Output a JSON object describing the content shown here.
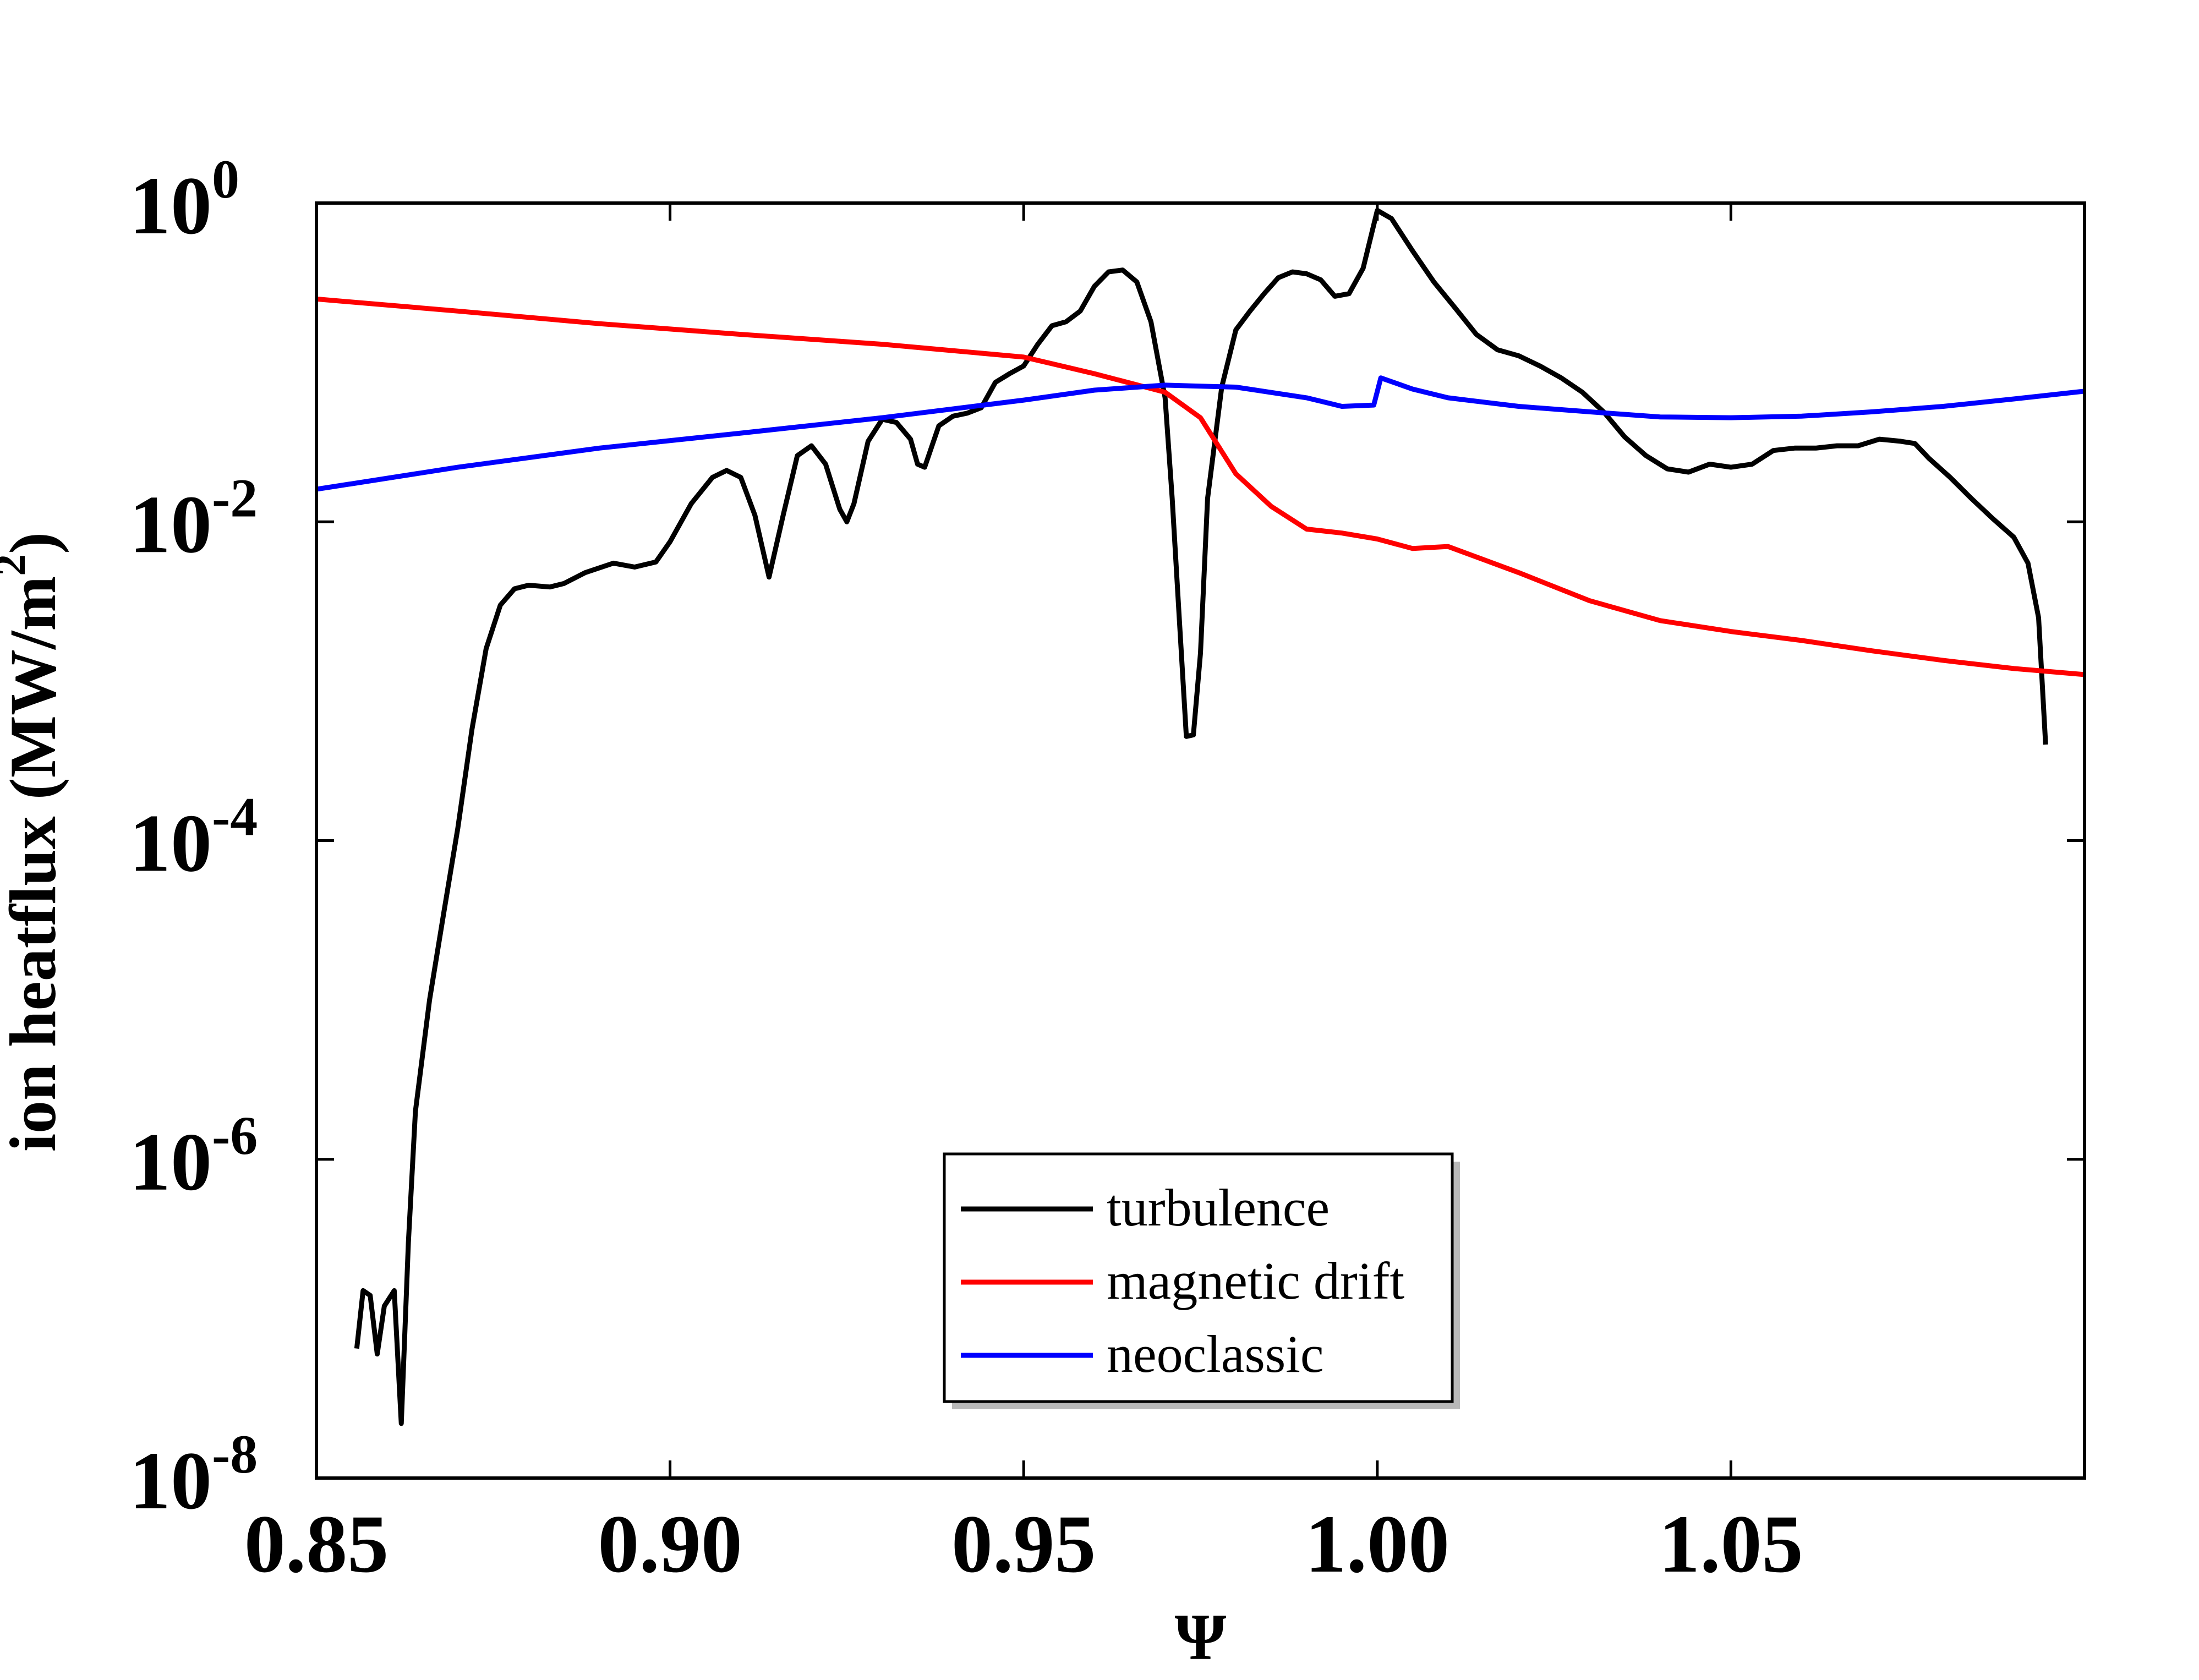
{
  "chart_data": {
    "type": "line",
    "xlabel": "Ψ",
    "ylabel": "ion heatflux (MW/m",
    "ylabel_sup": "2",
    "ylabel_close": ")",
    "xlim": [
      0.85,
      1.1
    ],
    "ylim": [
      1e-08,
      1
    ],
    "yscale": "log",
    "grid": false,
    "legend_position": "bottom-center",
    "x_ticks": [
      {
        "value": 0.85,
        "label": "0.85"
      },
      {
        "value": 0.9,
        "label": "0.90"
      },
      {
        "value": 0.95,
        "label": "0.95"
      },
      {
        "value": 1.0,
        "label": "1.00"
      },
      {
        "value": 1.05,
        "label": "1.05"
      }
    ],
    "y_ticks": [
      {
        "exp": 0,
        "base": "10",
        "sup": "0"
      },
      {
        "exp": -2,
        "base": "10",
        "sup": "-2"
      },
      {
        "exp": -4,
        "base": "10",
        "sup": "-4"
      },
      {
        "exp": -6,
        "base": "10",
        "sup": "-6"
      },
      {
        "exp": -8,
        "base": "10",
        "sup": "-8"
      }
    ],
    "series": [
      {
        "name": "turbulence",
        "color": "#000000",
        "points": [
          [
            0.8557,
            6.5e-08
          ],
          [
            0.8566,
            1.5e-07
          ],
          [
            0.8576,
            1.4e-07
          ],
          [
            0.8586,
            6e-08
          ],
          [
            0.8596,
            1.2e-07
          ],
          [
            0.861,
            1.5e-07
          ],
          [
            0.862,
            2.2e-08
          ],
          [
            0.863,
            3e-07
          ],
          [
            0.864,
            2e-06
          ],
          [
            0.866,
            1e-05
          ],
          [
            0.868,
            3.5e-05
          ],
          [
            0.87,
            0.00012
          ],
          [
            0.872,
            0.0005
          ],
          [
            0.874,
            0.0016
          ],
          [
            0.876,
            0.003
          ],
          [
            0.878,
            0.0038
          ],
          [
            0.88,
            0.004
          ],
          [
            0.883,
            0.0039
          ],
          [
            0.885,
            0.0041
          ],
          [
            0.888,
            0.0048
          ],
          [
            0.892,
            0.0055
          ],
          [
            0.895,
            0.0052
          ],
          [
            0.898,
            0.0056
          ],
          [
            0.9,
            0.0075
          ],
          [
            0.903,
            0.013
          ],
          [
            0.906,
            0.019
          ],
          [
            0.908,
            0.021
          ],
          [
            0.91,
            0.019
          ],
          [
            0.912,
            0.011
          ],
          [
            0.914,
            0.0045
          ],
          [
            0.916,
            0.011
          ],
          [
            0.918,
            0.026
          ],
          [
            0.92,
            0.03
          ],
          [
            0.922,
            0.023
          ],
          [
            0.924,
            0.012
          ],
          [
            0.925,
            0.01
          ],
          [
            0.926,
            0.013
          ],
          [
            0.928,
            0.032
          ],
          [
            0.93,
            0.044
          ],
          [
            0.932,
            0.042
          ],
          [
            0.934,
            0.033
          ],
          [
            0.935,
            0.023
          ],
          [
            0.936,
            0.022
          ],
          [
            0.938,
            0.04
          ],
          [
            0.94,
            0.046
          ],
          [
            0.942,
            0.048
          ],
          [
            0.944,
            0.052
          ],
          [
            0.946,
            0.075
          ],
          [
            0.948,
            0.085
          ],
          [
            0.95,
            0.095
          ],
          [
            0.952,
            0.13
          ],
          [
            0.954,
            0.17
          ],
          [
            0.956,
            0.18
          ],
          [
            0.958,
            0.21
          ],
          [
            0.96,
            0.3
          ],
          [
            0.962,
            0.37
          ],
          [
            0.964,
            0.38
          ],
          [
            0.966,
            0.32
          ],
          [
            0.968,
            0.18
          ],
          [
            0.97,
            0.06
          ],
          [
            0.971,
            0.014
          ],
          [
            0.972,
            0.0025
          ],
          [
            0.973,
            0.00045
          ],
          [
            0.974,
            0.00046
          ],
          [
            0.975,
            0.0015
          ],
          [
            0.976,
            0.014
          ],
          [
            0.978,
            0.07
          ],
          [
            0.98,
            0.16
          ],
          [
            0.982,
            0.21
          ],
          [
            0.984,
            0.27
          ],
          [
            0.986,
            0.34
          ],
          [
            0.988,
            0.37
          ],
          [
            0.99,
            0.36
          ],
          [
            0.992,
            0.33
          ],
          [
            0.994,
            0.26
          ],
          [
            0.996,
            0.27
          ],
          [
            0.998,
            0.39
          ],
          [
            1.0,
            0.9
          ],
          [
            1.002,
            0.8
          ],
          [
            1.005,
            0.5
          ],
          [
            1.008,
            0.32
          ],
          [
            1.011,
            0.22
          ],
          [
            1.014,
            0.15
          ],
          [
            1.017,
            0.12
          ],
          [
            1.02,
            0.11
          ],
          [
            1.023,
            0.095
          ],
          [
            1.026,
            0.08
          ],
          [
            1.029,
            0.065
          ],
          [
            1.032,
            0.049
          ],
          [
            1.035,
            0.034
          ],
          [
            1.038,
            0.026
          ],
          [
            1.041,
            0.0215
          ],
          [
            1.044,
            0.0205
          ],
          [
            1.047,
            0.023
          ],
          [
            1.05,
            0.022
          ],
          [
            1.053,
            0.023
          ],
          [
            1.056,
            0.028
          ],
          [
            1.059,
            0.029
          ],
          [
            1.062,
            0.029
          ],
          [
            1.065,
            0.03
          ],
          [
            1.068,
            0.03
          ],
          [
            1.071,
            0.033
          ],
          [
            1.074,
            0.032
          ],
          [
            1.076,
            0.031
          ],
          [
            1.078,
            0.025
          ],
          [
            1.081,
            0.019
          ],
          [
            1.084,
            0.014
          ],
          [
            1.087,
            0.0105
          ],
          [
            1.09,
            0.008
          ],
          [
            1.092,
            0.0055
          ],
          [
            1.0935,
            0.0025
          ],
          [
            1.0945,
            0.0004
          ]
        ]
      },
      {
        "name": "magnetic drift",
        "color": "#ff0000",
        "points": [
          [
            0.85,
            0.25
          ],
          [
            0.87,
            0.21
          ],
          [
            0.89,
            0.175
          ],
          [
            0.91,
            0.15
          ],
          [
            0.93,
            0.13
          ],
          [
            0.95,
            0.108
          ],
          [
            0.96,
            0.085
          ],
          [
            0.97,
            0.065
          ],
          [
            0.975,
            0.045
          ],
          [
            0.98,
            0.02
          ],
          [
            0.985,
            0.0125
          ],
          [
            0.99,
            0.009
          ],
          [
            0.995,
            0.0085
          ],
          [
            1.0,
            0.0078
          ],
          [
            1.005,
            0.0068
          ],
          [
            1.01,
            0.007
          ],
          [
            1.02,
            0.0048
          ],
          [
            1.03,
            0.0032
          ],
          [
            1.04,
            0.0024
          ],
          [
            1.05,
            0.00205
          ],
          [
            1.06,
            0.0018
          ],
          [
            1.07,
            0.00155
          ],
          [
            1.08,
            0.00135
          ],
          [
            1.09,
            0.0012
          ],
          [
            1.1,
            0.0011
          ]
        ]
      },
      {
        "name": "neoclassic",
        "color": "#0000ff",
        "points": [
          [
            0.85,
            0.016
          ],
          [
            0.87,
            0.022
          ],
          [
            0.89,
            0.029
          ],
          [
            0.91,
            0.036
          ],
          [
            0.93,
            0.045
          ],
          [
            0.95,
            0.058
          ],
          [
            0.96,
            0.067
          ],
          [
            0.97,
            0.072
          ],
          [
            0.98,
            0.07
          ],
          [
            0.99,
            0.06
          ],
          [
            0.995,
            0.053
          ],
          [
            0.9995,
            0.054
          ],
          [
            1.0005,
            0.08
          ],
          [
            1.005,
            0.068
          ],
          [
            1.01,
            0.06
          ],
          [
            1.02,
            0.053
          ],
          [
            1.03,
            0.049
          ],
          [
            1.04,
            0.0455
          ],
          [
            1.05,
            0.045
          ],
          [
            1.06,
            0.046
          ],
          [
            1.07,
            0.049
          ],
          [
            1.08,
            0.053
          ],
          [
            1.09,
            0.059
          ],
          [
            1.1,
            0.066
          ]
        ]
      }
    ]
  }
}
